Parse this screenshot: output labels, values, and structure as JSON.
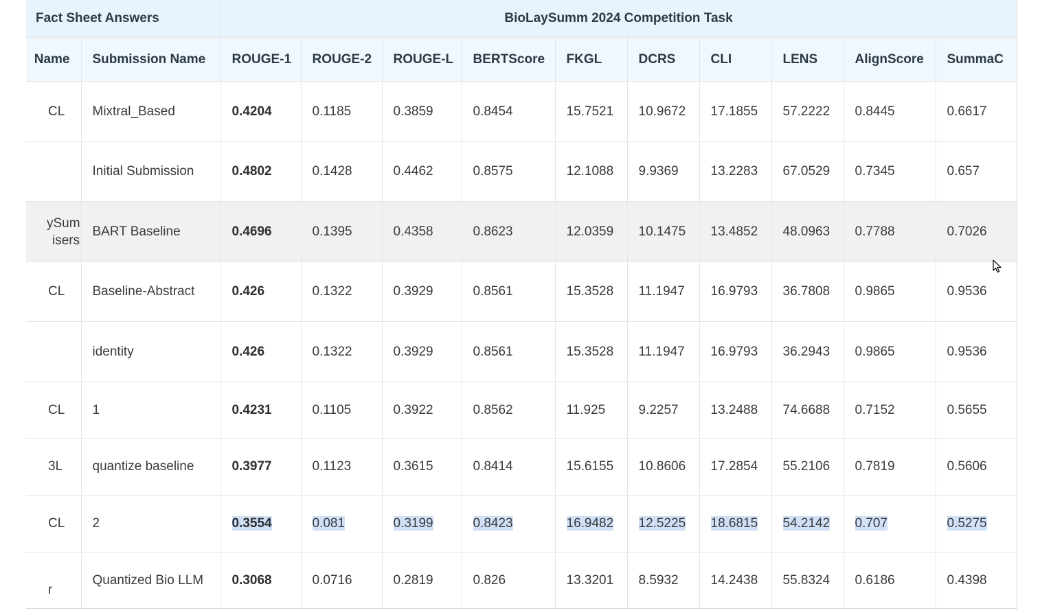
{
  "groups": {
    "fact_sheet": "Fact Sheet Answers",
    "competition": "BioLaySumm 2024 Competition Task"
  },
  "columns": [
    "Name",
    "Submission Name",
    "ROUGE-1",
    "ROUGE-2",
    "ROUGE-L",
    "BERTScore",
    "FKGL",
    "DCRS",
    "CLI",
    "LENS",
    "AlignScore",
    "SummaC"
  ],
  "rows": [
    {
      "team": "CL",
      "team2": "",
      "submission": "Mixtral_Based",
      "metrics": [
        "0.4204",
        "0.1185",
        "0.3859",
        "0.8454",
        "15.7521",
        "10.9672",
        "17.1855",
        "57.2222",
        "0.8445",
        "0.6617"
      ]
    },
    {
      "team": "",
      "team2": "",
      "submission": "Initial Submission",
      "metrics": [
        "0.4802",
        "0.1428",
        "0.4462",
        "0.8575",
        "12.1088",
        "9.9369",
        "13.2283",
        "67.0529",
        "0.7345",
        "0.657"
      ]
    },
    {
      "team": "ySumm",
      "team2": "isers",
      "submission": "BART Baseline",
      "metrics": [
        "0.4696",
        "0.1395",
        "0.4358",
        "0.8623",
        "12.0359",
        "10.1475",
        "13.4852",
        "48.0963",
        "0.7788",
        "0.7026"
      ]
    },
    {
      "team": "CL",
      "team2": "",
      "submission": "Baseline-Abstract",
      "metrics": [
        "0.426",
        "0.1322",
        "0.3929",
        "0.8561",
        "15.3528",
        "11.1947",
        "16.9793",
        "36.7808",
        "0.9865",
        "0.9536"
      ]
    },
    {
      "team": "",
      "team2": "",
      "submission": "identity",
      "metrics": [
        "0.426",
        "0.1322",
        "0.3929",
        "0.8561",
        "15.3528",
        "11.1947",
        "16.9793",
        "36.2943",
        "0.9865",
        "0.9536"
      ]
    },
    {
      "team": "CL",
      "team2": "",
      "submission": "1",
      "metrics": [
        "0.4231",
        "0.1105",
        "0.3922",
        "0.8562",
        "11.925",
        "9.2257",
        "13.2488",
        "74.6688",
        "0.7152",
        "0.5655"
      ]
    },
    {
      "team": "3L",
      "team2": "",
      "submission": "quantize baseline",
      "metrics": [
        "0.3977",
        "0.1123",
        "0.3615",
        "0.8414",
        "15.6155",
        "10.8606",
        "17.2854",
        "55.2106",
        "0.7819",
        "0.5606"
      ]
    },
    {
      "team": "CL",
      "team2": "",
      "submission": "2",
      "metrics": [
        "0.3554",
        "0.081",
        "0.3199",
        "0.8423",
        "16.9482",
        "12.5225",
        "18.6815",
        "54.2142",
        "0.707",
        "0.5275"
      ]
    },
    {
      "team": "r",
      "team2": "",
      "submission": "Quantized Bio LLM",
      "metrics": [
        "0.3068",
        "0.0716",
        "0.2819",
        "0.826",
        "13.3201",
        "8.5932",
        "14.2438",
        "55.8324",
        "0.6186",
        "0.4398"
      ]
    }
  ],
  "state": {
    "hover_row": 2,
    "selected_row": 7
  },
  "colors": {
    "header_bg": "#e8f4fd",
    "subheader_bg": "#f0f7fd",
    "hover_bg": "#f1f1f1",
    "selection_bg": "#cfe0f7"
  },
  "icons": {
    "cursor": "arrow-cursor-icon"
  }
}
